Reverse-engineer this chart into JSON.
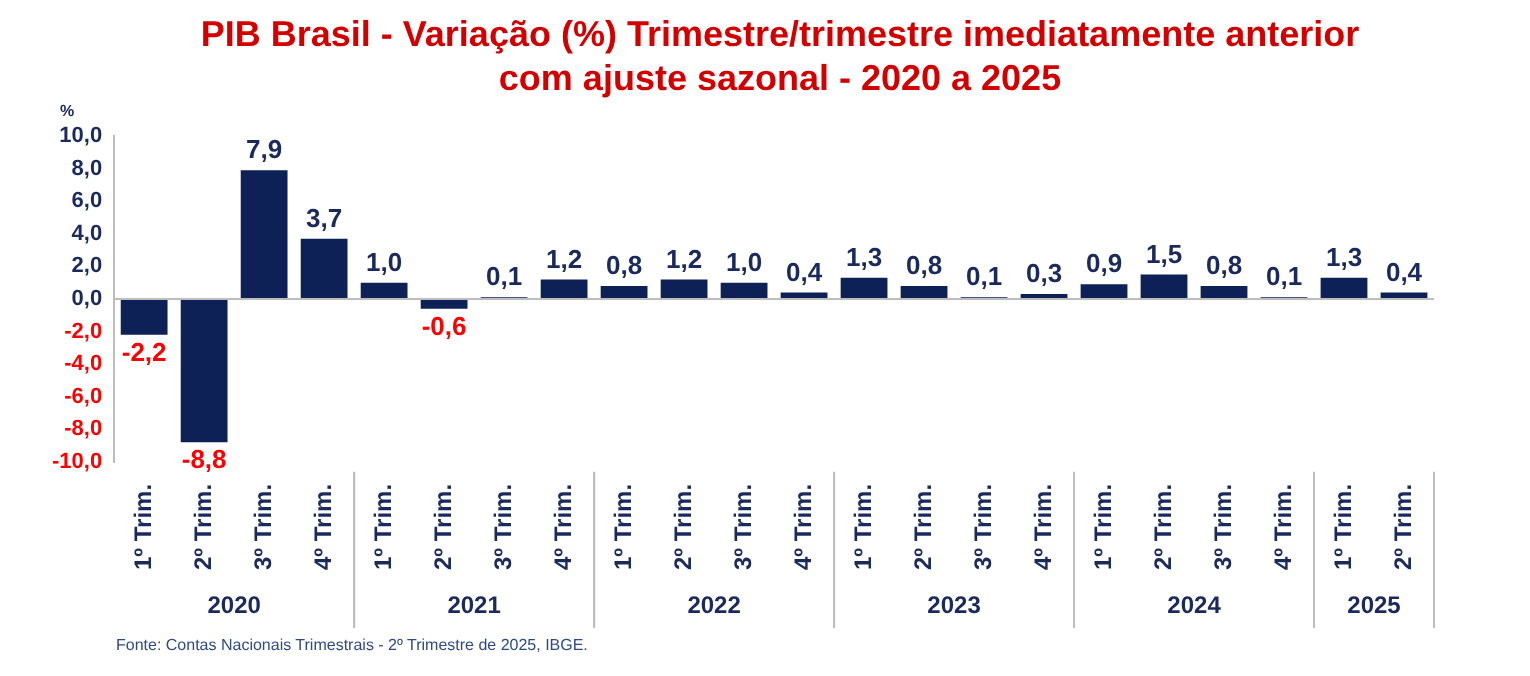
{
  "chart_data": {
    "type": "bar",
    "title": "PIB Brasil - Variação (%) Trimestre/trimestre imediatamente anterior com ajuste sazonal - 2020 a 2025",
    "ylabel": "%",
    "categories": [
      "1º Trim.",
      "2º Trim.",
      "3º Trim.",
      "4º Trim.",
      "1º Trim.",
      "2º Trim.",
      "3º Trim.",
      "4º Trim.",
      "1º Trim.",
      "2º Trim.",
      "3º Trim.",
      "4º Trim.",
      "1º Trim.",
      "2º Trim.",
      "3º Trim.",
      "4º Trim.",
      "1º Trim.",
      "2º Trim.",
      "3º Trim.",
      "4º Trim.",
      "1º Trim.",
      "2º Trim."
    ],
    "values": [
      -2.2,
      -8.8,
      7.9,
      3.7,
      1.0,
      -0.6,
      0.1,
      1.2,
      0.8,
      1.2,
      1.0,
      0.4,
      1.3,
      0.8,
      0.1,
      0.3,
      0.9,
      1.5,
      0.8,
      0.1,
      1.3,
      0.4
    ],
    "value_labels": [
      "-2,2",
      "-8,8",
      "7,9",
      "3,7",
      "1,0",
      "-0,6",
      "0,1",
      "1,2",
      "0,8",
      "1,2",
      "1,0",
      "0,4",
      "1,3",
      "0,8",
      "0,1",
      "0,3",
      "0,9",
      "1,5",
      "0,8",
      "0,1",
      "1,3",
      "0,4"
    ],
    "color": "#0d2156",
    "ylim": [
      -10,
      10
    ],
    "yticks": [
      {
        "value": -10,
        "label": "-10,0"
      },
      {
        "value": -8,
        "label": "-8,0"
      },
      {
        "value": -6,
        "label": "-6,0"
      },
      {
        "value": -4,
        "label": "-4,0"
      },
      {
        "value": -2,
        "label": "-2,0"
      },
      {
        "value": 0,
        "label": "0,0"
      },
      {
        "value": 2,
        "label": "2,0"
      },
      {
        "value": 4,
        "label": "4,0"
      },
      {
        "value": 6,
        "label": "6,0"
      },
      {
        "value": 8,
        "label": "8,0"
      },
      {
        "value": 10,
        "label": "10,0"
      }
    ],
    "annotations": [
      "2020",
      "2021",
      "2022",
      "2023",
      "2024",
      "2025",
      "Fonte: Contas Nacionais Trimestrais - 2º Trimestre de 2025, IBGE."
    ],
    "ref_lines": [
      {
        "axis": "y",
        "value": 0,
        "color": "#bdbdbd"
      }
    ],
    "grid": false,
    "legend": false
  }
}
